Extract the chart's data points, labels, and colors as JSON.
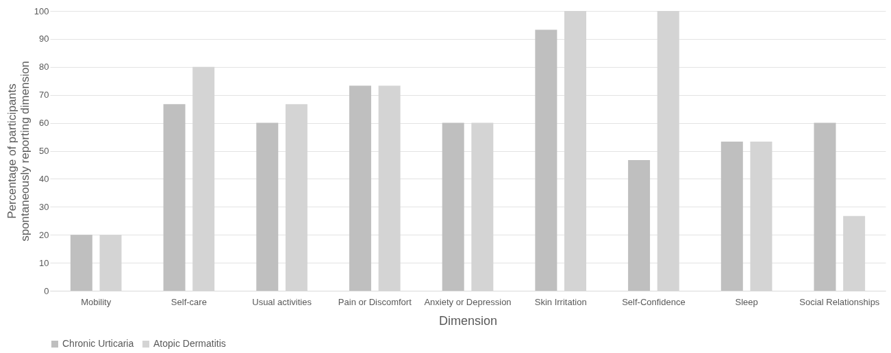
{
  "chart_data": {
    "type": "bar",
    "xlabel": "Dimension",
    "ylabel": "Percentage of participants spontaneously reporting dimension",
    "categories": [
      "Mobility",
      "Self-care",
      "Usual activities",
      "Pain or Discomfort",
      "Anxiety or Depression",
      "Skin Irritation",
      "Self-Confidence",
      "Sleep",
      "Social Relationships"
    ],
    "series": [
      {
        "name": "Chronic Urticaria",
        "color": "#bfbfbf",
        "values": [
          20,
          66.7,
          60,
          73.3,
          60,
          93.3,
          46.7,
          53.3,
          60
        ]
      },
      {
        "name": "Atopic Dermatitis",
        "color": "#d4d4d4",
        "values": [
          20,
          80,
          66.7,
          73.3,
          60,
          100,
          100,
          53.3,
          26.7
        ]
      }
    ],
    "ylim": [
      0,
      100
    ],
    "yticks": [
      0,
      10,
      20,
      30,
      40,
      50,
      60,
      70,
      80,
      90,
      100
    ],
    "grid": "y",
    "legend": "bottom"
  }
}
